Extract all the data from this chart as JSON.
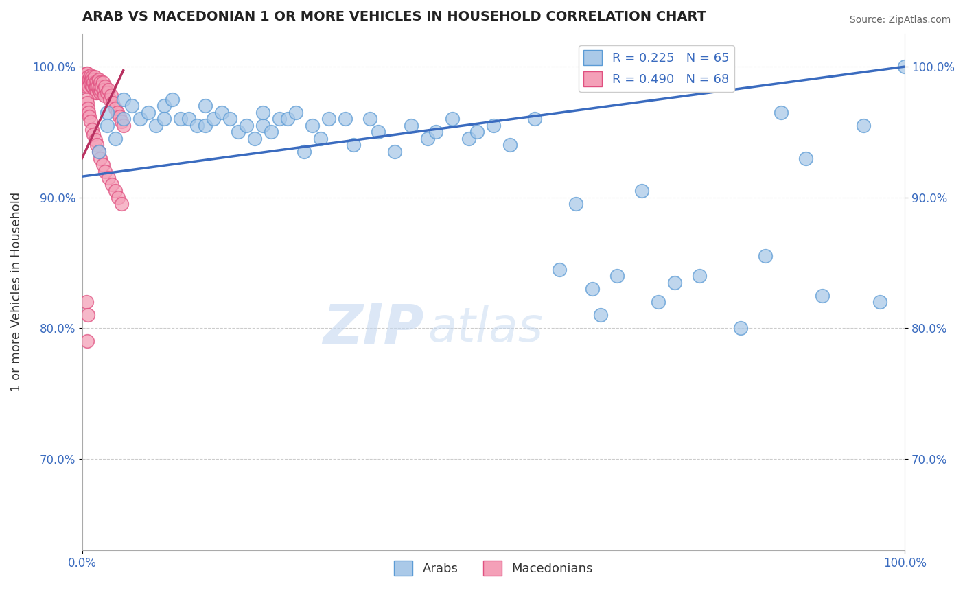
{
  "title": "ARAB VS MACEDONIAN 1 OR MORE VEHICLES IN HOUSEHOLD CORRELATION CHART",
  "source": "Source: ZipAtlas.com",
  "ylabel": "1 or more Vehicles in Household",
  "xlabel": "",
  "xlim": [
    0.0,
    1.0
  ],
  "ylim": [
    0.63,
    1.025
  ],
  "y_ticks": [
    0.7,
    0.8,
    0.9,
    1.0
  ],
  "y_tick_labels": [
    "70.0%",
    "80.0%",
    "90.0%",
    "100.0%"
  ],
  "arab_color": "#aac9e8",
  "macedonian_color": "#f4a0b8",
  "arab_edge_color": "#5b9bd5",
  "macedonian_edge_color": "#e05080",
  "trendline_arab_color": "#3a6bbf",
  "trendline_macedonian_color": "#b83060",
  "legend_R_arab": "R = 0.225",
  "legend_N_arab": "N = 65",
  "legend_R_macedonian": "R = 0.490",
  "legend_N_macedonian": "N = 68",
  "watermark_zip": "ZIP",
  "watermark_atlas": "atlas",
  "arab_x": [
    0.02,
    0.03,
    0.03,
    0.04,
    0.05,
    0.05,
    0.06,
    0.07,
    0.08,
    0.09,
    0.1,
    0.1,
    0.11,
    0.12,
    0.13,
    0.14,
    0.15,
    0.15,
    0.16,
    0.17,
    0.18,
    0.19,
    0.2,
    0.21,
    0.22,
    0.22,
    0.23,
    0.24,
    0.25,
    0.26,
    0.27,
    0.28,
    0.29,
    0.3,
    0.32,
    0.33,
    0.35,
    0.36,
    0.38,
    0.4,
    0.42,
    0.43,
    0.45,
    0.47,
    0.48,
    0.5,
    0.52,
    0.55,
    0.58,
    0.6,
    0.62,
    0.63,
    0.65,
    0.68,
    0.7,
    0.72,
    0.75,
    0.8,
    0.83,
    0.85,
    0.88,
    0.9,
    0.95,
    0.97,
    1.0
  ],
  "arab_y": [
    0.935,
    0.965,
    0.955,
    0.945,
    0.975,
    0.96,
    0.97,
    0.96,
    0.965,
    0.955,
    0.97,
    0.96,
    0.975,
    0.96,
    0.96,
    0.955,
    0.97,
    0.955,
    0.96,
    0.965,
    0.96,
    0.95,
    0.955,
    0.945,
    0.955,
    0.965,
    0.95,
    0.96,
    0.96,
    0.965,
    0.935,
    0.955,
    0.945,
    0.96,
    0.96,
    0.94,
    0.96,
    0.95,
    0.935,
    0.955,
    0.945,
    0.95,
    0.96,
    0.945,
    0.95,
    0.955,
    0.94,
    0.96,
    0.845,
    0.895,
    0.83,
    0.81,
    0.84,
    0.905,
    0.82,
    0.835,
    0.84,
    0.8,
    0.855,
    0.965,
    0.93,
    0.825,
    0.955,
    0.82,
    1.0
  ],
  "macedonian_x": [
    0.005,
    0.005,
    0.005,
    0.006,
    0.006,
    0.007,
    0.008,
    0.008,
    0.009,
    0.01,
    0.01,
    0.011,
    0.012,
    0.012,
    0.013,
    0.013,
    0.014,
    0.015,
    0.015,
    0.016,
    0.016,
    0.017,
    0.018,
    0.018,
    0.019,
    0.02,
    0.02,
    0.021,
    0.022,
    0.022,
    0.023,
    0.024,
    0.025,
    0.026,
    0.027,
    0.028,
    0.03,
    0.032,
    0.034,
    0.035,
    0.037,
    0.04,
    0.043,
    0.045,
    0.048,
    0.05,
    0.005,
    0.006,
    0.007,
    0.008,
    0.009,
    0.01,
    0.012,
    0.014,
    0.016,
    0.018,
    0.02,
    0.022,
    0.025,
    0.028,
    0.032,
    0.036,
    0.04,
    0.044,
    0.048,
    0.005,
    0.006,
    0.007
  ],
  "macedonian_y": [
    0.995,
    0.99,
    0.985,
    0.995,
    0.988,
    0.992,
    0.99,
    0.985,
    0.99,
    0.993,
    0.987,
    0.99,
    0.992,
    0.985,
    0.99,
    0.985,
    0.988,
    0.992,
    0.985,
    0.988,
    0.98,
    0.985,
    0.988,
    0.98,
    0.985,
    0.99,
    0.982,
    0.985,
    0.988,
    0.98,
    0.982,
    0.985,
    0.988,
    0.982,
    0.978,
    0.985,
    0.98,
    0.982,
    0.975,
    0.978,
    0.972,
    0.968,
    0.965,
    0.962,
    0.958,
    0.955,
    0.975,
    0.972,
    0.968,
    0.965,
    0.962,
    0.958,
    0.952,
    0.948,
    0.944,
    0.94,
    0.935,
    0.93,
    0.925,
    0.92,
    0.915,
    0.91,
    0.905,
    0.9,
    0.895,
    0.82,
    0.79,
    0.81
  ],
  "trendline_arab_start_x": 0.0,
  "trendline_arab_start_y": 0.916,
  "trendline_arab_end_x": 1.0,
  "trendline_arab_end_y": 1.0,
  "trendline_mac_start_x": 0.0,
  "trendline_mac_start_y": 0.93,
  "trendline_mac_end_x": 0.05,
  "trendline_mac_end_y": 0.997
}
